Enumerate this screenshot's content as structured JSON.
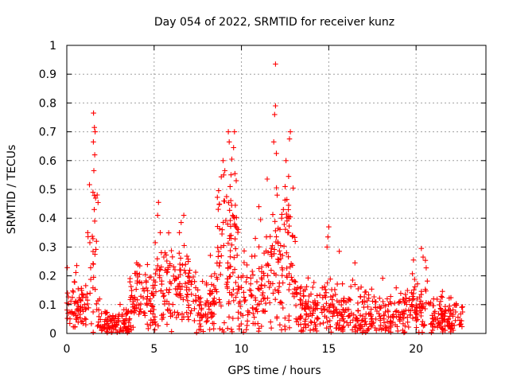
{
  "chart_data": {
    "type": "scatter",
    "title": "Day 054 of 2022, SRMTID for receiver kunz",
    "xlabel": "GPS time / hours",
    "ylabel": "SRMTID / TECUs",
    "xlim": [
      0,
      24
    ],
    "ylim": [
      0,
      1
    ],
    "xticks": [
      0,
      5,
      10,
      15,
      20
    ],
    "xtick_labels": [
      "0",
      "5",
      "10",
      "15",
      "20"
    ],
    "yticks": [
      0,
      0.1,
      0.2,
      0.3,
      0.4,
      0.5,
      0.6,
      0.7,
      0.8,
      0.9,
      1
    ],
    "ytick_labels": [
      "0",
      "0.1",
      "0.2",
      "0.3",
      "0.4",
      "0.5",
      "0.6",
      "0.7",
      "0.8",
      "0.9",
      "1"
    ],
    "grid": true,
    "marker": "+",
    "color": "#ff0000",
    "series_name": "SRMTID",
    "bands": [
      {
        "t0": 0.0,
        "t1": 1.1,
        "base": 0.09,
        "spread": 0.07,
        "n": 70
      },
      {
        "t0": 1.1,
        "t1": 1.8,
        "base": 0.22,
        "spread": 0.2,
        "n": 30
      },
      {
        "t0": 1.8,
        "t1": 3.6,
        "base": 0.03,
        "spread": 0.04,
        "n": 110
      },
      {
        "t0": 3.6,
        "t1": 5.0,
        "base": 0.11,
        "spread": 0.08,
        "n": 90
      },
      {
        "t0": 5.0,
        "t1": 7.2,
        "base": 0.15,
        "spread": 0.1,
        "n": 130
      },
      {
        "t0": 7.2,
        "t1": 8.6,
        "base": 0.09,
        "spread": 0.08,
        "n": 80
      },
      {
        "t0": 8.6,
        "t1": 9.8,
        "base": 0.25,
        "spread": 0.2,
        "n": 90
      },
      {
        "t0": 9.8,
        "t1": 11.4,
        "base": 0.12,
        "spread": 0.1,
        "n": 90
      },
      {
        "t0": 11.4,
        "t1": 13.1,
        "base": 0.22,
        "spread": 0.18,
        "n": 110
      },
      {
        "t0": 13.1,
        "t1": 15.5,
        "base": 0.08,
        "spread": 0.07,
        "n": 140
      },
      {
        "t0": 15.5,
        "t1": 19.3,
        "base": 0.06,
        "spread": 0.06,
        "n": 200
      },
      {
        "t0": 19.3,
        "t1": 20.8,
        "base": 0.09,
        "spread": 0.08,
        "n": 80
      },
      {
        "t0": 20.8,
        "t1": 22.7,
        "base": 0.05,
        "spread": 0.05,
        "n": 110
      }
    ],
    "peaks": [
      {
        "x": 1.53,
        "y": 0.765
      },
      {
        "x": 1.58,
        "y": 0.715
      },
      {
        "x": 1.62,
        "y": 0.7
      },
      {
        "x": 1.52,
        "y": 0.665
      },
      {
        "x": 1.6,
        "y": 0.62
      },
      {
        "x": 1.55,
        "y": 0.565
      },
      {
        "x": 1.5,
        "y": 0.49
      },
      {
        "x": 1.65,
        "y": 0.47
      },
      {
        "x": 1.57,
        "y": 0.43
      },
      {
        "x": 1.6,
        "y": 0.39
      },
      {
        "x": 1.2,
        "y": 0.35
      },
      {
        "x": 1.7,
        "y": 0.32
      },
      {
        "x": 5.25,
        "y": 0.455
      },
      {
        "x": 5.2,
        "y": 0.41
      },
      {
        "x": 5.35,
        "y": 0.35
      },
      {
        "x": 6.7,
        "y": 0.41
      },
      {
        "x": 6.55,
        "y": 0.385
      },
      {
        "x": 6.45,
        "y": 0.35
      },
      {
        "x": 9.25,
        "y": 0.7
      },
      {
        "x": 9.6,
        "y": 0.7
      },
      {
        "x": 9.3,
        "y": 0.665
      },
      {
        "x": 9.55,
        "y": 0.645
      },
      {
        "x": 8.95,
        "y": 0.6
      },
      {
        "x": 9.45,
        "y": 0.605
      },
      {
        "x": 9.05,
        "y": 0.565
      },
      {
        "x": 9.7,
        "y": 0.53
      },
      {
        "x": 9.35,
        "y": 0.51
      },
      {
        "x": 9.15,
        "y": 0.475
      },
      {
        "x": 9.65,
        "y": 0.445
      },
      {
        "x": 9.5,
        "y": 0.41
      },
      {
        "x": 8.9,
        "y": 0.36
      },
      {
        "x": 9.4,
        "y": 0.33
      },
      {
        "x": 11.0,
        "y": 0.44
      },
      {
        "x": 11.1,
        "y": 0.395
      },
      {
        "x": 10.8,
        "y": 0.33
      },
      {
        "x": 11.95,
        "y": 0.935
      },
      {
        "x": 11.95,
        "y": 0.79
      },
      {
        "x": 11.9,
        "y": 0.76
      },
      {
        "x": 12.8,
        "y": 0.7
      },
      {
        "x": 12.75,
        "y": 0.675
      },
      {
        "x": 11.85,
        "y": 0.665
      },
      {
        "x": 12.0,
        "y": 0.625
      },
      {
        "x": 12.55,
        "y": 0.6
      },
      {
        "x": 12.7,
        "y": 0.545
      },
      {
        "x": 12.5,
        "y": 0.51
      },
      {
        "x": 12.6,
        "y": 0.465
      },
      {
        "x": 12.4,
        "y": 0.43
      },
      {
        "x": 12.3,
        "y": 0.4
      },
      {
        "x": 12.1,
        "y": 0.365
      },
      {
        "x": 12.65,
        "y": 0.35
      },
      {
        "x": 15.0,
        "y": 0.37
      },
      {
        "x": 14.95,
        "y": 0.335
      },
      {
        "x": 14.9,
        "y": 0.3
      },
      {
        "x": 20.3,
        "y": 0.295
      },
      {
        "x": 20.4,
        "y": 0.265
      },
      {
        "x": 19.85,
        "y": 0.255
      },
      {
        "x": 16.5,
        "y": 0.245
      },
      {
        "x": 15.6,
        "y": 0.285
      }
    ]
  }
}
